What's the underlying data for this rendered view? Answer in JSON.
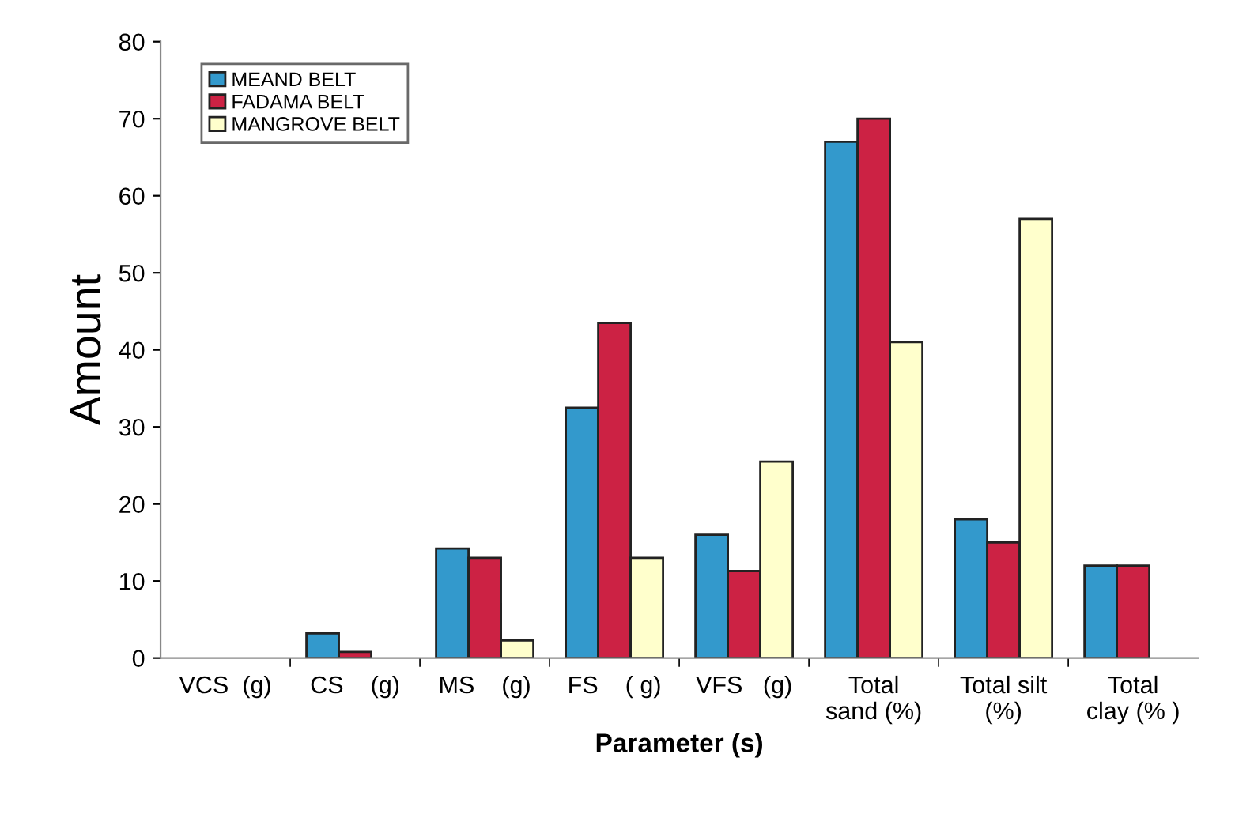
{
  "chart_data": {
    "type": "bar",
    "xlabel": "Parameter (s)",
    "ylabel": "Amount",
    "categories": [
      "VCS  (g)",
      "CS    (g)",
      "MS    (g)",
      "FS    ( g)",
      "VFS   (g)",
      "Total\nsand (%)",
      "Total silt\n(%)",
      "Total\nclay (% )"
    ],
    "series": [
      {
        "name": "MEAND BELT",
        "color": "#3399cc",
        "values": [
          null,
          3.2,
          14.2,
          32.5,
          16,
          67,
          18,
          12
        ]
      },
      {
        "name": "FADAMA BELT",
        "color": "#cc2244",
        "values": [
          null,
          0.8,
          13,
          43.5,
          11.3,
          70,
          15,
          12
        ]
      },
      {
        "name": "MANGROVE BELT",
        "color": "#ffffcc",
        "values": [
          null,
          null,
          2.3,
          13,
          25.5,
          41,
          57,
          null
        ]
      }
    ],
    "ylim": [
      0,
      80
    ],
    "yticks": [
      0,
      10,
      20,
      30,
      40,
      50,
      60,
      70,
      80
    ],
    "grid": false,
    "legend": "top left"
  }
}
